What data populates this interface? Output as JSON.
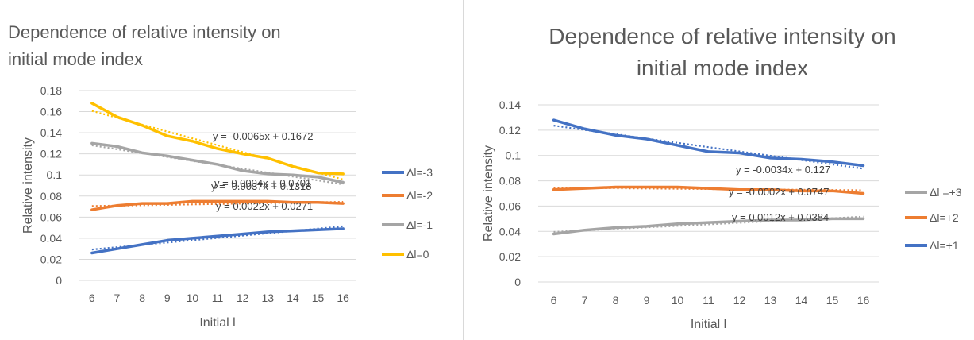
{
  "chart_data": [
    {
      "type": "line",
      "title_lines": [
        "Dependence of relative intensity on",
        "initial mode index"
      ],
      "xlabel": "Initial l",
      "ylabel": "Relative intensity",
      "categories": [
        6,
        7,
        8,
        9,
        10,
        11,
        12,
        13,
        14,
        15,
        16
      ],
      "ylim": [
        0,
        0.18
      ],
      "yticks": [
        "0",
        "0.02",
        "0.04",
        "0.06",
        "0.08",
        "0.1",
        "0.12",
        "0.14",
        "0.16",
        "0.18"
      ],
      "grid": true,
      "legend_position": "right",
      "series": [
        {
          "name": "Δl=-3",
          "color": "#4472C4",
          "values": [
            0.026,
            0.03,
            0.034,
            0.038,
            0.04,
            0.042,
            0.044,
            0.046,
            0.047,
            0.048,
            0.049
          ],
          "trend": {
            "slope": 0.0022,
            "intercept": 0.0271,
            "label": "y = 0.0022x + 0.0271"
          }
        },
        {
          "name": "Δl=-2",
          "color": "#ED7D31",
          "values": [
            0.067,
            0.071,
            0.073,
            0.073,
            0.075,
            0.075,
            0.075,
            0.075,
            0.074,
            0.074,
            0.073
          ],
          "trend": {
            "slope": 0.0004,
            "intercept": 0.0701,
            "label": "y = 0.0004x + 0.0701"
          }
        },
        {
          "name": "Δl=-1",
          "color": "#A5A5A5",
          "values": [
            0.13,
            0.127,
            0.121,
            0.118,
            0.114,
            0.11,
            0.104,
            0.101,
            0.1,
            0.098,
            0.093
          ],
          "trend": {
            "slope": -0.0037,
            "intercept": 0.1318,
            "label": "y = -0.0037x + 0.1318"
          }
        },
        {
          "name": "Δl=0",
          "color": "#FFC000",
          "values": [
            0.168,
            0.155,
            0.147,
            0.137,
            0.132,
            0.125,
            0.12,
            0.116,
            0.108,
            0.102,
            0.101
          ],
          "trend": {
            "slope": -0.0065,
            "intercept": 0.1672,
            "label": "y = -0.0065x + 0.1672"
          }
        }
      ]
    },
    {
      "type": "line",
      "title_lines": [
        "Dependence of relative intensity on",
        "initial mode index"
      ],
      "xlabel": "Initial l",
      "ylabel": "Relative intensity",
      "categories": [
        6,
        7,
        8,
        9,
        10,
        11,
        12,
        13,
        14,
        15,
        16
      ],
      "ylim": [
        0,
        0.14
      ],
      "yticks": [
        "0",
        "0.02",
        "0.04",
        "0.06",
        "0.08",
        "0.1",
        "0.12",
        "0.14"
      ],
      "grid": true,
      "legend_position": "right",
      "series": [
        {
          "name": "Δl =+3",
          "color": "#A5A5A5",
          "values": [
            0.038,
            0.041,
            0.043,
            0.044,
            0.046,
            0.047,
            0.048,
            0.049,
            0.049,
            0.05,
            0.05
          ],
          "trend": {
            "slope": 0.0012,
            "intercept": 0.0384,
            "label": "y = 0.0012x + 0.0384"
          }
        },
        {
          "name": "Δl=+2",
          "color": "#ED7D31",
          "values": [
            0.073,
            0.074,
            0.075,
            0.075,
            0.075,
            0.074,
            0.073,
            0.073,
            0.072,
            0.072,
            0.07
          ],
          "trend": {
            "slope": -0.0002,
            "intercept": 0.0747,
            "label": "y = -0.0002x + 0.0747"
          }
        },
        {
          "name": "Δl=+1",
          "color": "#4472C4",
          "values": [
            0.128,
            0.121,
            0.116,
            0.113,
            0.108,
            0.103,
            0.102,
            0.098,
            0.097,
            0.095,
            0.092
          ],
          "trend": {
            "slope": -0.0034,
            "intercept": 0.127,
            "label": "y = -0.0034x + 0.127"
          }
        }
      ]
    }
  ]
}
